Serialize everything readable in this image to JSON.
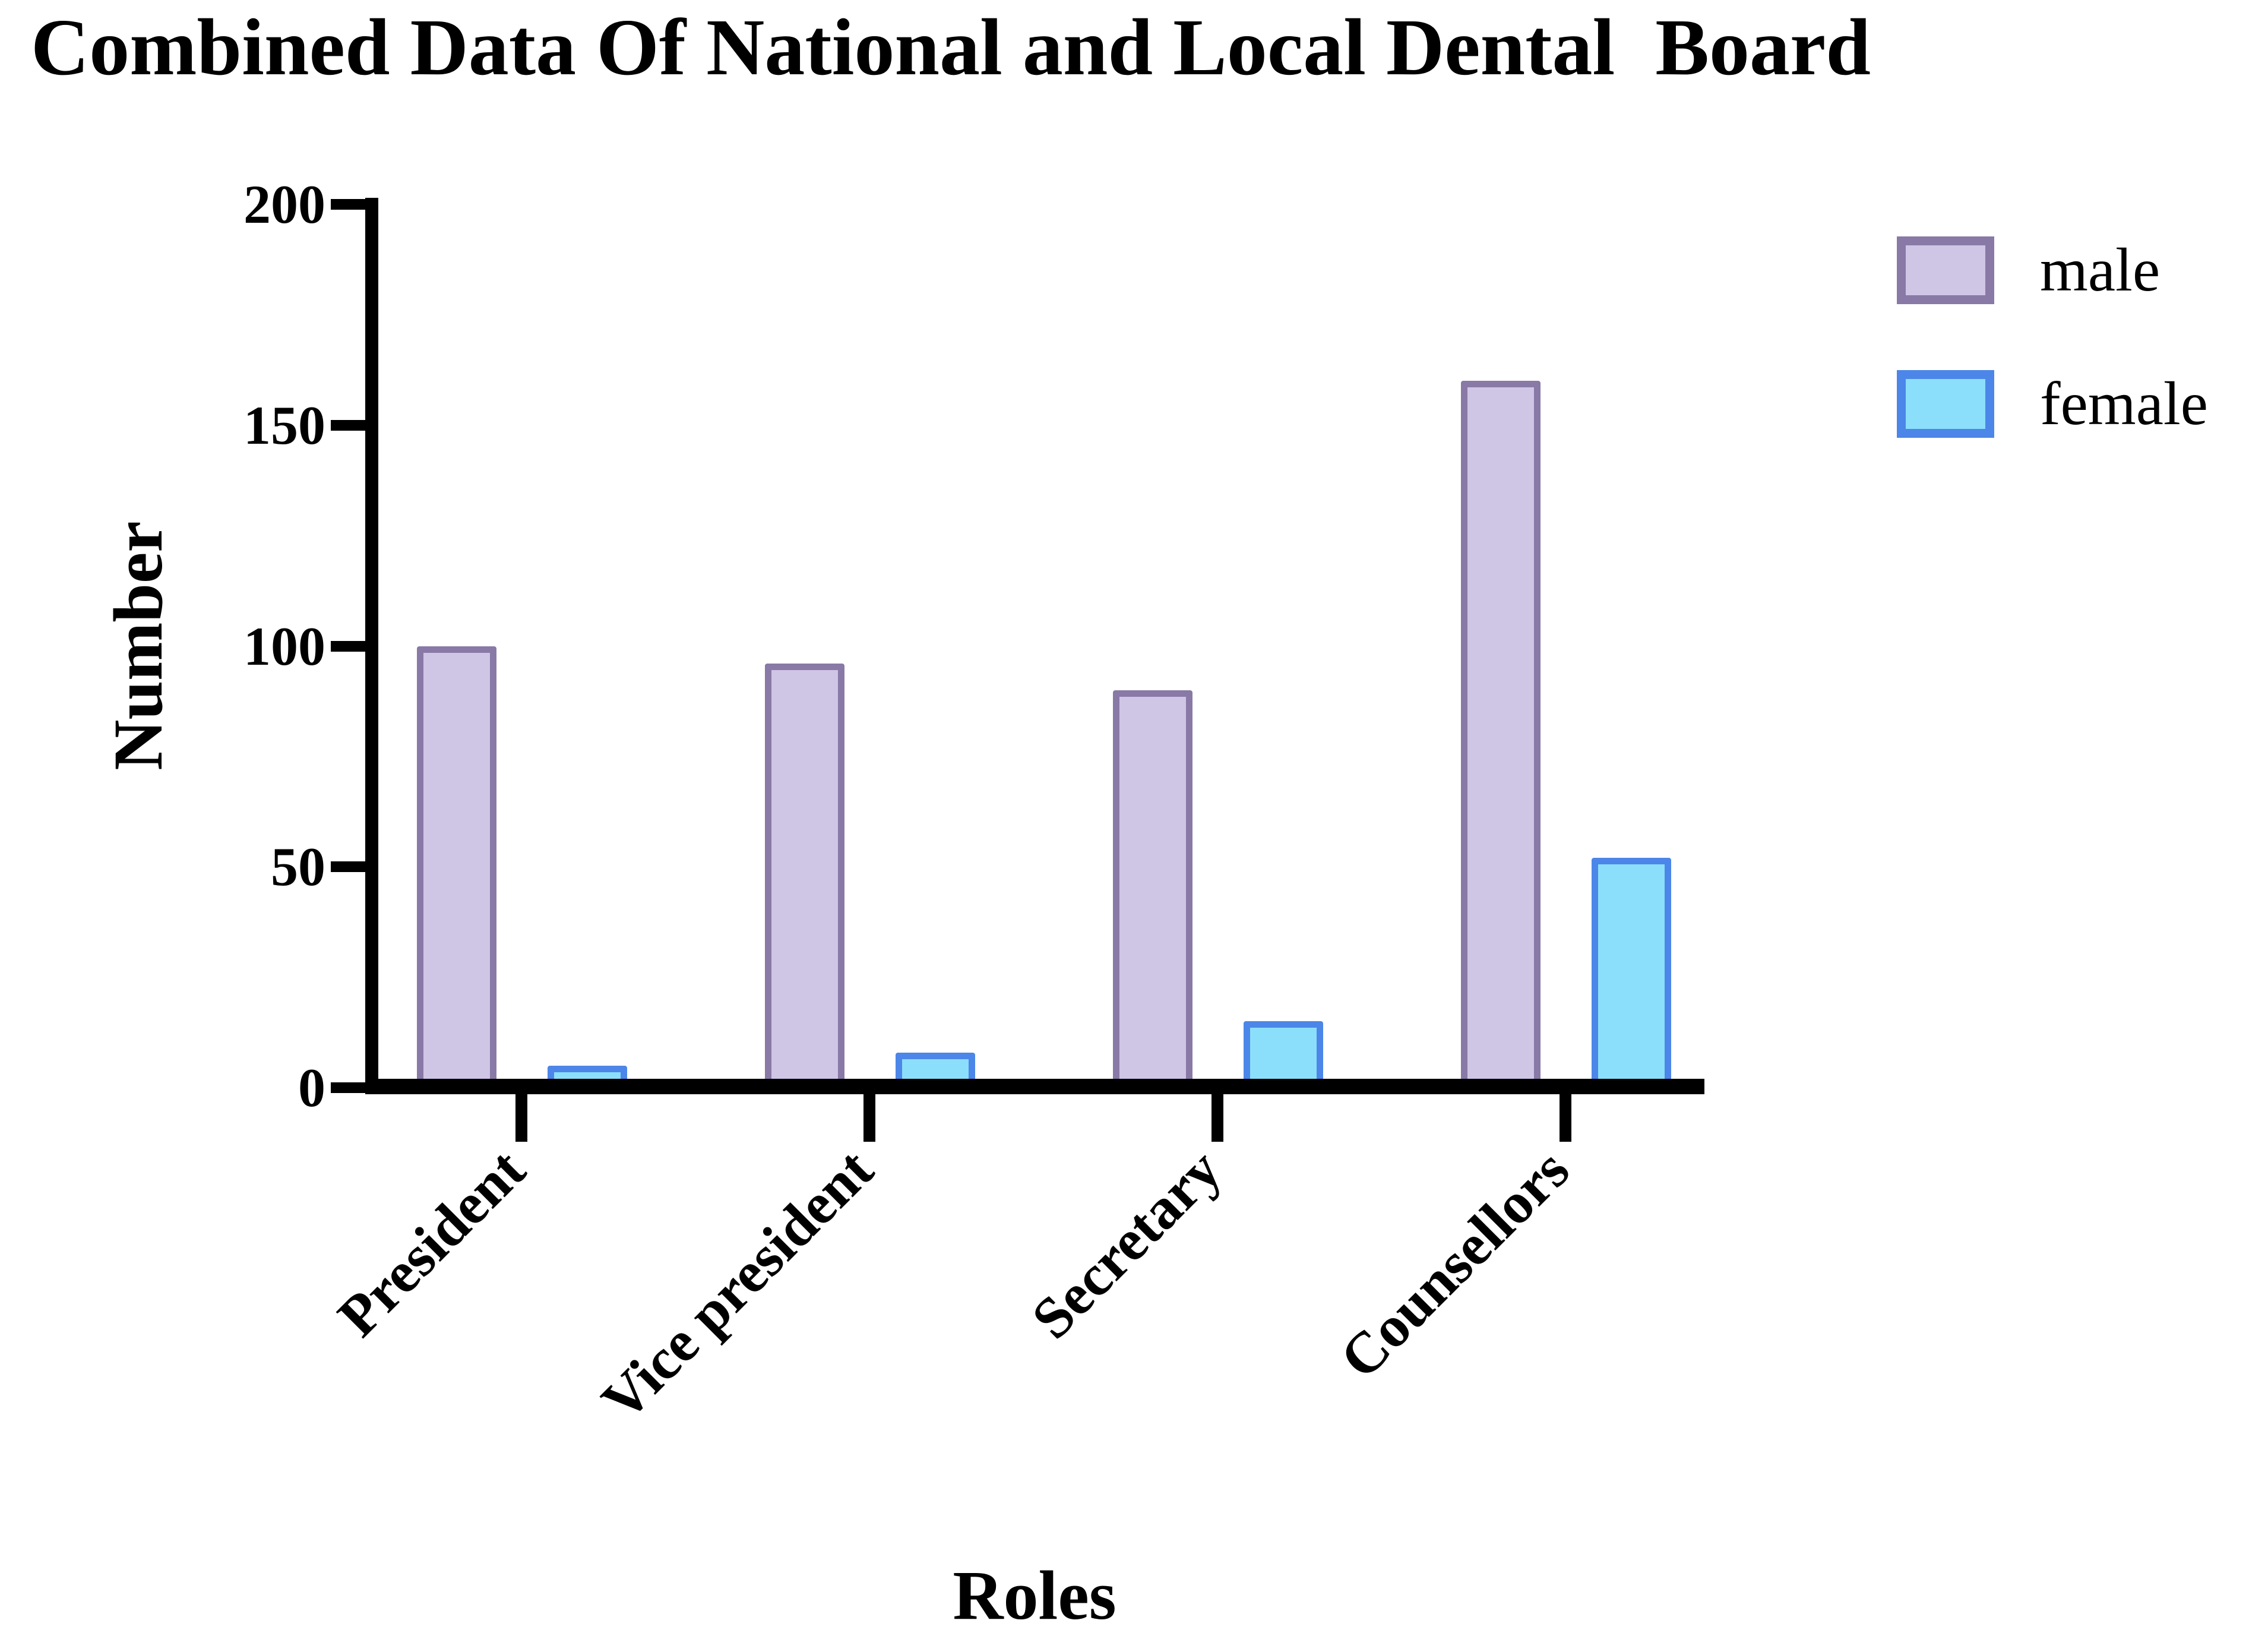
{
  "chart_data": {
    "type": "bar",
    "title": "Combined Data Of National and Local Dental  Board",
    "xlabel": "Roles",
    "ylabel": "Number",
    "categories": [
      "President",
      "Vice president",
      "Secretary",
      "Counsellors"
    ],
    "series": [
      {
        "name": "male",
        "values": [
          100,
          96,
          90,
          160
        ],
        "fill_color": "#cfc5e5",
        "border_color": "#8879a6"
      },
      {
        "name": "female",
        "values": [
          5,
          8,
          15,
          52
        ],
        "fill_color": "#8bdffb",
        "border_color": "#4c86e8"
      }
    ],
    "ylim": [
      0,
      200
    ],
    "yticks": [
      "0",
      "50",
      "100",
      "150",
      "200"
    ],
    "grid": false,
    "legend_position": "top-right",
    "axis_color": "#000000",
    "background_color": "#ffffff"
  }
}
